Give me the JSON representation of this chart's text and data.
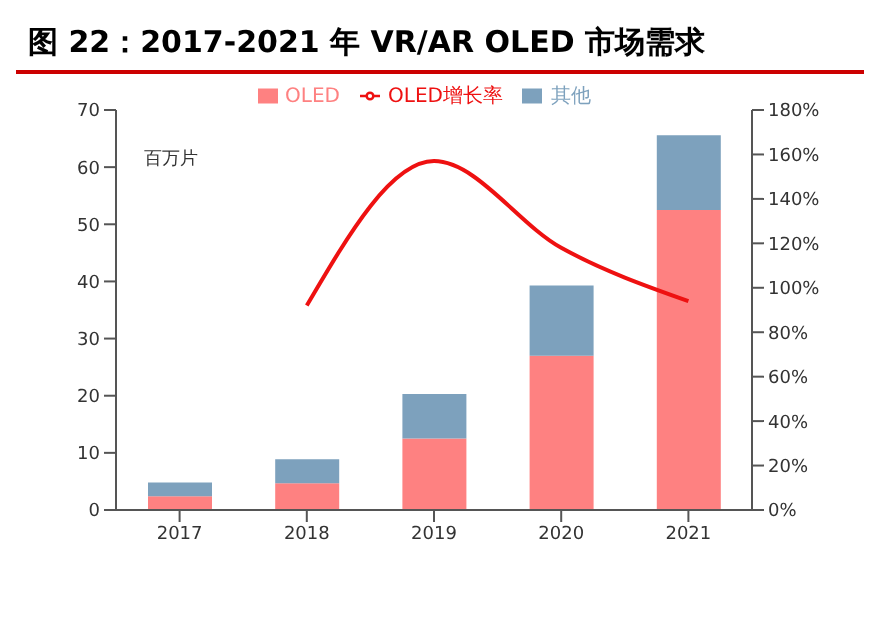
{
  "chart_data": {
    "type": "bar",
    "title": "图 22：2017-2021 年 VR/AR OLED 市场需求",
    "ylabel": "百万片",
    "categories": [
      "2017",
      "2018",
      "2019",
      "2020",
      "2021"
    ],
    "stacked": true,
    "series": [
      {
        "name": "OLED",
        "color": "#fe8181",
        "values": [
          2.4,
          4.7,
          12.5,
          27,
          52.5
        ]
      },
      {
        "name": "其他",
        "color": "#7da1bd",
        "values": [
          2.4,
          4.2,
          7.8,
          12.3,
          13.1
        ]
      },
      {
        "name": "OLED增长率",
        "type": "line",
        "axis": "y2",
        "color": "#ee1111",
        "values": [
          null,
          92,
          157,
          118,
          94
        ]
      }
    ],
    "ylim": [
      0,
      70
    ],
    "yticks": [
      0,
      10,
      20,
      30,
      40,
      50,
      60,
      70
    ],
    "y2lim": [
      0,
      180
    ],
    "y2ticks": [
      {
        "value": 0,
        "label": "0%"
      },
      {
        "value": 20,
        "label": "20%"
      },
      {
        "value": 40,
        "label": "40%"
      },
      {
        "value": 60,
        "label": "60%"
      },
      {
        "value": 80,
        "label": "80%"
      },
      {
        "value": 100,
        "label": "100%"
      },
      {
        "value": 120,
        "label": "120%"
      },
      {
        "value": 140,
        "label": "140%"
      },
      {
        "value": 160,
        "label": "160%"
      },
      {
        "value": 180,
        "label": "180%"
      }
    ],
    "legend": "top",
    "grid": false,
    "marker": "none"
  }
}
